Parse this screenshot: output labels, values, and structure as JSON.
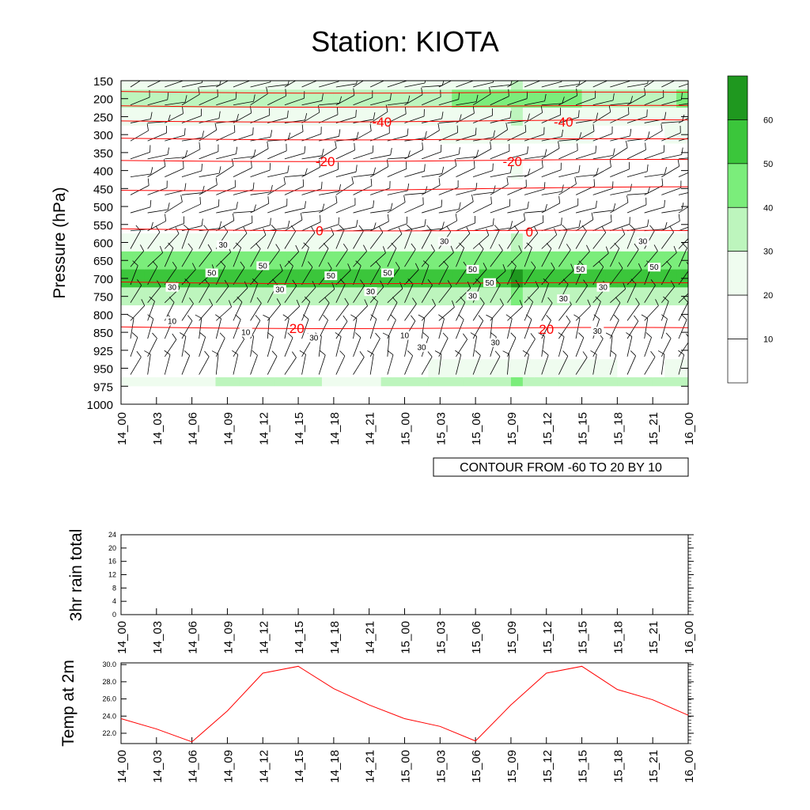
{
  "title": "Station: KIOTA",
  "colors": {
    "fill_levels": [
      "#ffffff",
      "#ffffff",
      "#effcef",
      "#bdf5bd",
      "#7bed7b",
      "#3bc63b",
      "#1f981f"
    ],
    "isotherm": "#ff0000",
    "barb": "#000000",
    "temp_line": "#ff0000"
  },
  "time_labels": [
    "14_00",
    "14_03",
    "14_06",
    "14_09",
    "14_12",
    "14_15",
    "14_18",
    "14_21",
    "15_00",
    "15_03",
    "15_06",
    "15_09",
    "15_12",
    "15_15",
    "15_18",
    "15_21",
    "16_00"
  ],
  "chart_data": [
    {
      "type": "heatmap",
      "name": "wind-speed-cross-section",
      "ylabel": "Pressure (hPa)",
      "pressure_levels": [
        150,
        200,
        250,
        300,
        350,
        400,
        450,
        500,
        550,
        600,
        650,
        700,
        750,
        800,
        850,
        925,
        950,
        975,
        1000
      ],
      "shading_levels": [
        10,
        20,
        30,
        40,
        50,
        60
      ],
      "colorbar_labels": [
        "10",
        "20",
        "30",
        "40",
        "50",
        "60"
      ],
      "speed_profile_t0": [
        25,
        22,
        20,
        15,
        15,
        12,
        10,
        8,
        10,
        28,
        40,
        55,
        35,
        15,
        10,
        8,
        10,
        20,
        20
      ],
      "speed_profile_t1": [
        30,
        45,
        30,
        22,
        18,
        20,
        12,
        10,
        12,
        30,
        45,
        60,
        40,
        18,
        12,
        15,
        25,
        40,
        40
      ],
      "contour_labels": [
        "30",
        "30",
        "30",
        "50",
        "50",
        "50",
        "50",
        "50",
        "50",
        "50",
        "50",
        "30",
        "30",
        "30",
        "30",
        "30",
        "30",
        "10",
        "10",
        "10",
        "30",
        "30",
        "30",
        "30"
      ],
      "info_box": "CONTOUR FROM -60 TO 20 BY 10",
      "isotherms": [
        {
          "value": -60,
          "pressure": [
            180,
            185
          ]
        },
        {
          "value": -50,
          "pressure": [
            220,
            222
          ]
        },
        {
          "value": -40,
          "pressure": [
            262,
            262
          ],
          "label": "-40"
        },
        {
          "value": -30,
          "pressure": [
            310,
            315
          ]
        },
        {
          "value": -20,
          "pressure": [
            372,
            372
          ],
          "label": "-20"
        },
        {
          "value": -10,
          "pressure": [
            455,
            448
          ]
        },
        {
          "value": 0,
          "pressure": [
            562,
            570
          ],
          "label": "0"
        },
        {
          "value": 10,
          "pressure": [
            710,
            715
          ]
        },
        {
          "value": 20,
          "pressure": [
            835,
            840
          ],
          "label": "20"
        }
      ]
    },
    {
      "type": "line",
      "name": "3hr-rain-total",
      "ylabel": "3hr rain total",
      "yticks": [
        "0",
        "4",
        "8",
        "12",
        "16",
        "20",
        "24"
      ],
      "ylim": [
        0,
        24
      ],
      "values": [
        0,
        0,
        0,
        0,
        0,
        0,
        0,
        0,
        0,
        0,
        0,
        0,
        0,
        0,
        0,
        0,
        0
      ]
    },
    {
      "type": "line",
      "name": "temp-at-2m",
      "ylabel": "Temp at 2m",
      "yticks": [
        "22.0",
        "24.0",
        "26.0",
        "28.0",
        "30.0"
      ],
      "ylim": [
        20.8,
        30.2
      ],
      "values": [
        23.7,
        22.5,
        21.0,
        24.6,
        29.0,
        29.8,
        27.2,
        25.3,
        23.7,
        22.8,
        21.1,
        25.3,
        29.0,
        29.8,
        27.1,
        25.9,
        24.1
      ]
    }
  ]
}
